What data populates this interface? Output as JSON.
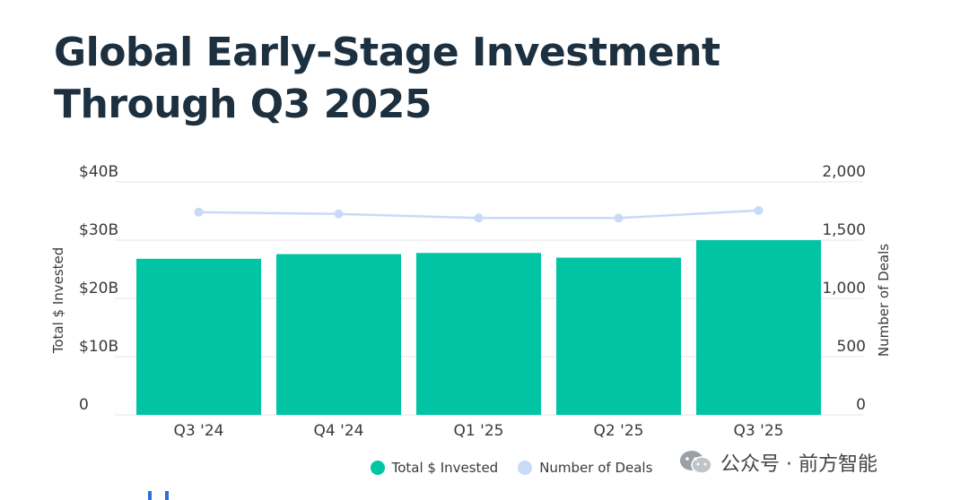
{
  "title": {
    "line1": "Global Early-Stage Investment",
    "line2": "Through Q3 2025"
  },
  "chart_data": {
    "type": "bar",
    "categories": [
      "Q3 '24",
      "Q4 '24",
      "Q1 '25",
      "Q2 '25",
      "Q3 '25"
    ],
    "series": [
      {
        "name": "Total $ Invested",
        "type": "bar",
        "axis": "left",
        "color": "#00c4a3",
        "values": [
          26.8,
          27.6,
          27.8,
          27.0,
          30.0
        ]
      },
      {
        "name": "Number of Deals",
        "type": "line",
        "axis": "right",
        "color": "#c9daf8",
        "values": [
          1740,
          1725,
          1690,
          1690,
          1755
        ]
      }
    ],
    "y_left": {
      "label": "Total $ Invested",
      "ticks": [
        "0",
        "$10B",
        "$20B",
        "$30B",
        "$40B"
      ],
      "min": 0,
      "max": 40
    },
    "y_right": {
      "label": "Number of Deals",
      "ticks": [
        "0",
        "500",
        "1,000",
        "1,500",
        "2,000"
      ],
      "min": 0,
      "max": 2000
    },
    "grid": true,
    "legend_position": "bottom"
  },
  "legend": {
    "invested": "Total $ Invested",
    "deals": "Number of Deals",
    "invested_color": "#00c4a3",
    "deals_color": "#c9daf8"
  },
  "watermark": {
    "text": "公众号 · 前方智能",
    "icon": "wechat-icon"
  }
}
